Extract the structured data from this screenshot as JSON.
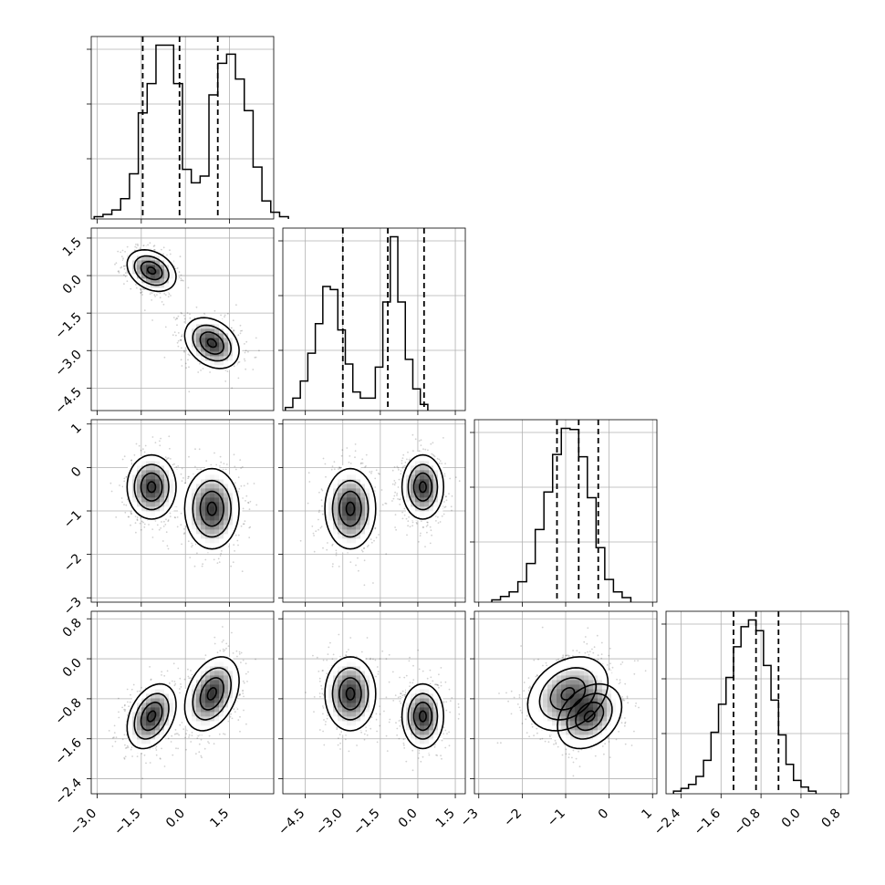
{
  "chart_data": {
    "type": "corner",
    "grid": true,
    "parameters": [
      {
        "range": [
          -3.2,
          3.0
        ],
        "ticks": [
          -3.0,
          -1.5,
          0.0,
          1.5
        ],
        "tick_labels": [
          "−3.0",
          "−1.5",
          "0.0",
          "1.5"
        ],
        "quantiles": [
          -1.45,
          -0.2,
          1.1
        ],
        "hist": {
          "edges_from": -3.1,
          "bin_width": 0.3,
          "counts": [
            1,
            2,
            4,
            9,
            20,
            47,
            60,
            77,
            77,
            60,
            22,
            16,
            19,
            55,
            69,
            73,
            62,
            48,
            23,
            8,
            3,
            1
          ]
        }
      },
      {
        "range": [
          -5.4,
          1.9
        ],
        "ticks": [
          -4.5,
          -3.0,
          -1.5,
          0.0,
          1.5
        ],
        "tick_labels": [
          "−4.5",
          "−3.0",
          "−1.5",
          "0.0",
          "1.5"
        ],
        "quantiles": [
          -3.0,
          -1.2,
          0.25
        ],
        "hist": {
          "edges_from": -5.3,
          "bin_width": 0.3,
          "counts": [
            2,
            8,
            19,
            37,
            56,
            80,
            78,
            52,
            30,
            12,
            8,
            8,
            28,
            70,
            112,
            70,
            33,
            14,
            4
          ]
        }
      },
      {
        "range": [
          -3.1,
          1.1
        ],
        "ticks": [
          -3,
          -2,
          -1,
          0,
          1
        ],
        "tick_labels": [
          "−3",
          "−2",
          "−1",
          "0",
          "1"
        ],
        "quantiles": [
          -1.2,
          -0.7,
          -0.25
        ],
        "hist": {
          "edges_from": -2.7,
          "bin_width": 0.2,
          "counts": [
            2,
            5,
            9,
            18,
            34,
            64,
            97,
            130,
            153,
            152,
            128,
            92,
            48,
            20,
            9,
            4
          ]
        }
      },
      {
        "range": [
          -2.7,
          0.95
        ],
        "ticks": [
          -2.4,
          -1.6,
          -0.8,
          0.0,
          0.8
        ],
        "tick_labels": [
          "−2.4",
          "−1.6",
          "−0.8",
          "0.0",
          "0.8"
        ],
        "quantiles": [
          -1.35,
          -0.9,
          -0.45
        ],
        "hist": {
          "edges_from": -2.55,
          "bin_width": 0.15,
          "counts": [
            2,
            4,
            7,
            13,
            25,
            46,
            67,
            87,
            110,
            125,
            130,
            122,
            96,
            70,
            44,
            22,
            10,
            5,
            2
          ]
        }
      }
    ],
    "modes": [
      {
        "x0": -1.15,
        "x1": 0.2,
        "x2": -0.45,
        "x3": -1.15,
        "s0": 0.45,
        "s1": 0.45,
        "s2": 0.4,
        "s3": 0.35
      },
      {
        "x0": 0.9,
        "x1": -2.7,
        "x2": -0.95,
        "x3": -0.7,
        "s0": 0.5,
        "s1": 0.55,
        "s2": 0.5,
        "s3": 0.4
      }
    ],
    "mode_correlation": {
      "x0_x1": -0.3,
      "x0_x3": 0.35,
      "x2_x3": 0.3
    }
  }
}
